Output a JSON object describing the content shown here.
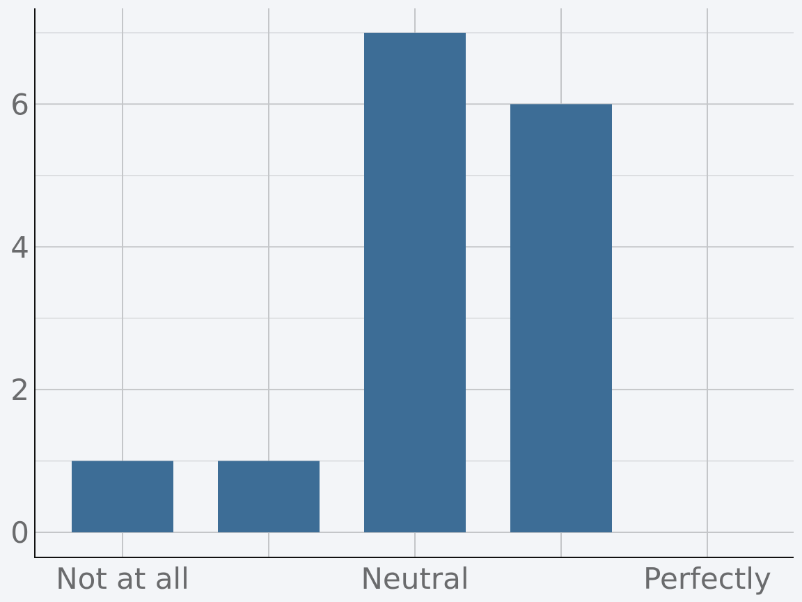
{
  "chart_data": {
    "type": "bar",
    "categories": [
      "1",
      "2",
      "3",
      "4",
      "5"
    ],
    "values": [
      1,
      1,
      7,
      6,
      0
    ],
    "x_tick_labels": [
      {
        "category": "1",
        "label": "Not at all"
      },
      {
        "category": "3",
        "label": "Neutral"
      },
      {
        "category": "5",
        "label": "Perfectly"
      }
    ],
    "x_ticks_unlabeled": [
      "2",
      "4"
    ],
    "y_ticks": [
      0,
      2,
      4,
      6
    ],
    "y_minor_ticks": [
      1,
      3,
      5,
      7
    ],
    "ylim": [
      -0.35,
      7.35
    ],
    "title": "",
    "xlabel": "",
    "ylabel": "",
    "grid": true,
    "bar_color": "#3d6d96"
  }
}
